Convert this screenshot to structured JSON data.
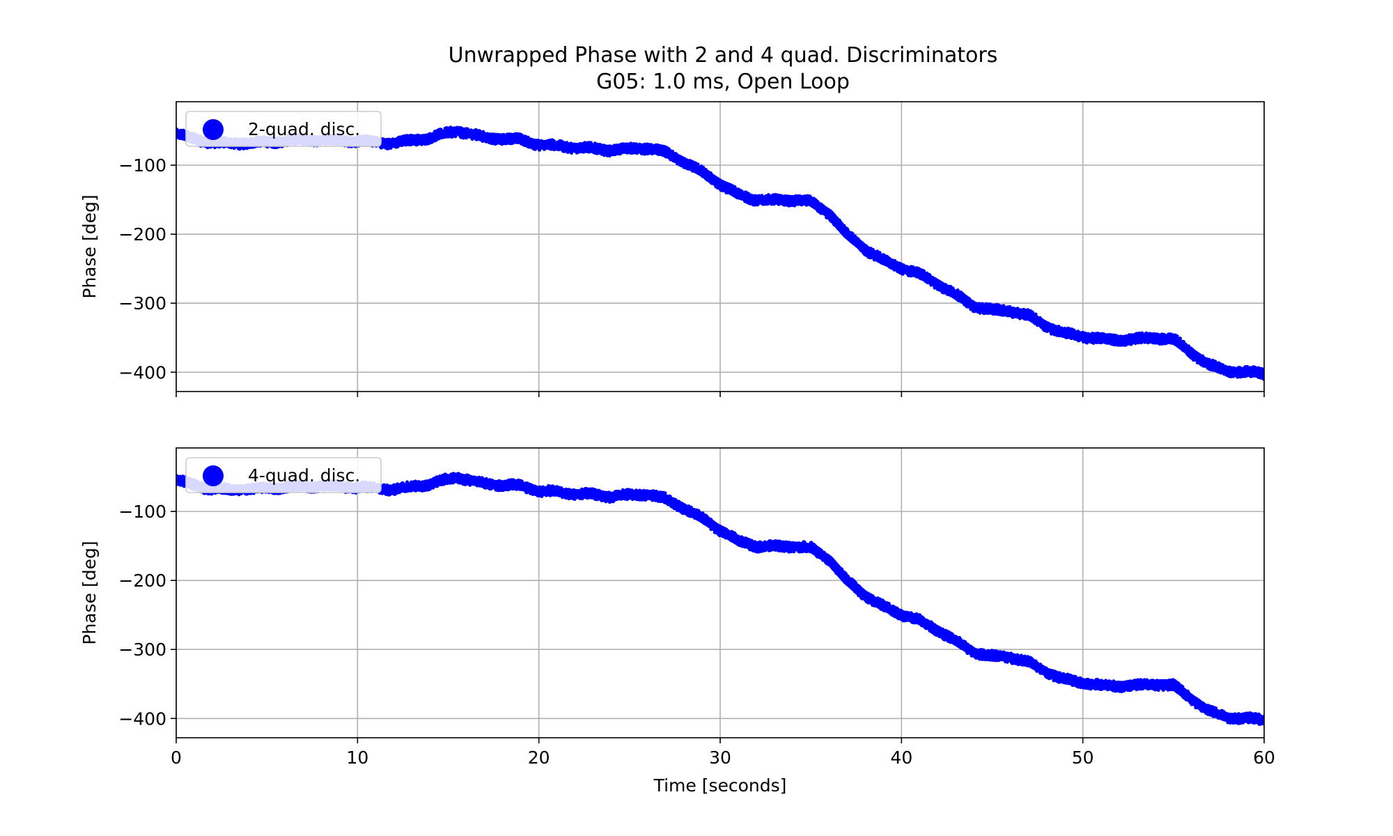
{
  "figure": {
    "title_line1": "Unwrapped Phase with 2 and 4 quad. Discriminators",
    "title_line2": "G05: 1.0 ms, Open Loop"
  },
  "colors": {
    "series": "#0000ff",
    "grid": "#b0b0b0",
    "legend_border": "#cccccc"
  },
  "chart_data": [
    {
      "type": "scatter",
      "title": "",
      "xlabel": "",
      "ylabel": "Phase [deg]",
      "xlim": [
        0,
        60
      ],
      "ylim": [
        -428,
        -8
      ],
      "x_ticks": [
        0,
        10,
        20,
        30,
        40,
        50,
        60
      ],
      "y_ticks": [
        -100,
        -200,
        -300,
        -400
      ],
      "y_tick_labels": [
        "−100",
        "−200",
        "−300",
        "−400"
      ],
      "x_tick_labels": [],
      "grid": true,
      "legend_position": "top-left",
      "marker_spread_deg": 14,
      "series": [
        {
          "name": "2-quad. disc.",
          "color": "#0000ff",
          "x": [
            0,
            2,
            4,
            6,
            8,
            10,
            12,
            14,
            15.5,
            17,
            19,
            20,
            22,
            24,
            26,
            27,
            28,
            29,
            30,
            31,
            32,
            33,
            34,
            35,
            36,
            37,
            38,
            39,
            40,
            41,
            42,
            43,
            44,
            45,
            46,
            47,
            48,
            49,
            50,
            51,
            52,
            53,
            54,
            55,
            56,
            57,
            58,
            59,
            60
          ],
          "y": [
            -55,
            -68,
            -68,
            -65,
            -63,
            -65,
            -68,
            -60,
            -50,
            -60,
            -63,
            -70,
            -74,
            -78,
            -75,
            -82,
            -95,
            -110,
            -127,
            -143,
            -150,
            -151,
            -150,
            -153,
            -170,
            -200,
            -222,
            -238,
            -249,
            -258,
            -272,
            -288,
            -304,
            -310,
            -311,
            -318,
            -333,
            -344,
            -348,
            -352,
            -353,
            -352,
            -350,
            -352,
            -372,
            -390,
            -398,
            -400,
            -402
          ]
        }
      ]
    },
    {
      "type": "scatter",
      "title": "",
      "xlabel": "Time [seconds]",
      "ylabel": "Phase [deg]",
      "xlim": [
        0,
        60
      ],
      "ylim": [
        -428,
        -8
      ],
      "x_ticks": [
        0,
        10,
        20,
        30,
        40,
        50,
        60
      ],
      "x_tick_labels": [
        "0",
        "10",
        "20",
        "30",
        "40",
        "50",
        "60"
      ],
      "y_ticks": [
        -100,
        -200,
        -300,
        -400
      ],
      "y_tick_labels": [
        "−100",
        "−200",
        "−300",
        "−400"
      ],
      "grid": true,
      "legend_position": "top-left",
      "marker_spread_deg": 14,
      "series": [
        {
          "name": "4-quad. disc.",
          "color": "#0000ff",
          "x": [
            0,
            2,
            4,
            6,
            8,
            10,
            12,
            14,
            15.5,
            17,
            19,
            20,
            22,
            24,
            26,
            27,
            28,
            29,
            30,
            31,
            32,
            33,
            34,
            35,
            36,
            37,
            38,
            39,
            40,
            41,
            42,
            43,
            44,
            45,
            46,
            47,
            48,
            49,
            50,
            51,
            52,
            53,
            54,
            55,
            56,
            57,
            58,
            59,
            60
          ],
          "y": [
            -55,
            -68,
            -68,
            -65,
            -63,
            -65,
            -68,
            -60,
            -50,
            -60,
            -63,
            -70,
            -74,
            -78,
            -75,
            -82,
            -95,
            -110,
            -127,
            -143,
            -150,
            -151,
            -150,
            -153,
            -170,
            -200,
            -222,
            -238,
            -249,
            -258,
            -272,
            -288,
            -304,
            -310,
            -311,
            -318,
            -333,
            -344,
            -348,
            -352,
            -353,
            -352,
            -350,
            -352,
            -372,
            -390,
            -398,
            -400,
            -402
          ]
        }
      ]
    }
  ]
}
